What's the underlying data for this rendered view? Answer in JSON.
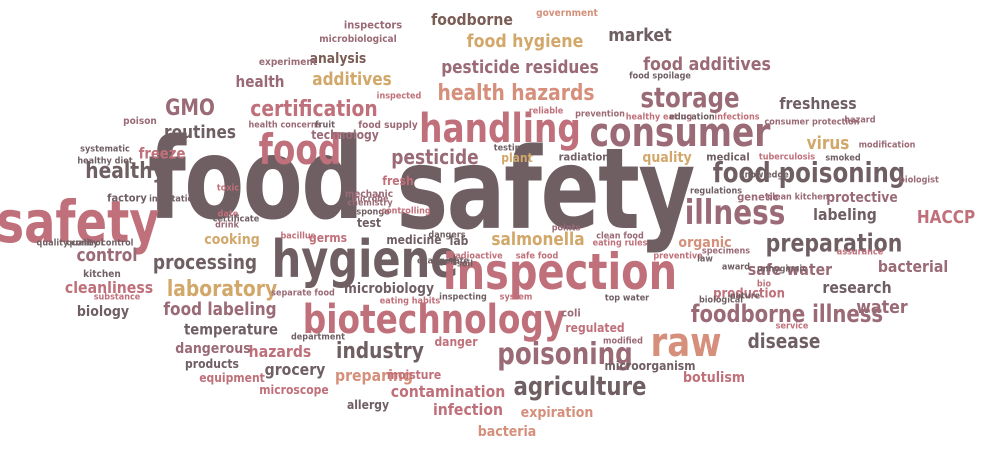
{
  "colors": {
    "dark": "#6f5f63",
    "mauve": "#9a6a76",
    "rose": "#c0707a",
    "salmon": "#d58f7a",
    "gold": "#d2a86a",
    "brown": "#7a5d55"
  },
  "words": [
    {
      "text": "food",
      "color": "#6f5f63"
    },
    {
      "text": "safety",
      "color": "#6f5f63"
    },
    {
      "text": "safety",
      "color": "#c0707a"
    },
    {
      "text": "hygiene",
      "color": "#6f5f63"
    },
    {
      "text": "inspection",
      "color": "#c0707a"
    },
    {
      "text": "biotechnology",
      "color": "#c0707a"
    },
    {
      "text": "consumer",
      "color": "#9a6a76"
    },
    {
      "text": "food",
      "color": "#c0707a"
    },
    {
      "text": "handling",
      "color": "#c0707a"
    },
    {
      "text": "raw",
      "color": "#d58f7a"
    },
    {
      "text": "illness",
      "color": "#9a6a76"
    },
    {
      "text": "poisoning",
      "color": "#9a6a76"
    },
    {
      "text": "food poisoning",
      "color": "#6f5f63"
    },
    {
      "text": "storage",
      "color": "#9a6a76"
    },
    {
      "text": "agriculture",
      "color": "#6f5f63"
    },
    {
      "text": "foodborne illness",
      "color": "#9a6a76"
    },
    {
      "text": "preparation",
      "color": "#6f5f63"
    },
    {
      "text": "laboratory",
      "color": "#d2a86a"
    },
    {
      "text": "health hazards",
      "color": "#d58f7a"
    },
    {
      "text": "certification",
      "color": "#c0707a"
    },
    {
      "text": "pesticide residues",
      "color": "#9a6a76"
    },
    {
      "text": "food hygiene",
      "color": "#d2a86a"
    },
    {
      "text": "foodborne",
      "color": "#7a5d55"
    },
    {
      "text": "market",
      "color": "#6f5f63"
    },
    {
      "text": "food additives",
      "color": "#9a6a76"
    },
    {
      "text": "freshness",
      "color": "#6f5f63"
    },
    {
      "text": "virus",
      "color": "#d2a86a"
    },
    {
      "text": "industry",
      "color": "#6f5f63"
    },
    {
      "text": "processing",
      "color": "#6f5f63"
    },
    {
      "text": "food labeling",
      "color": "#9a6a76"
    },
    {
      "text": "healthy",
      "color": "#6f5f63"
    },
    {
      "text": "GMO",
      "color": "#9a6a76"
    },
    {
      "text": "routines",
      "color": "#6f5f63"
    },
    {
      "text": "health",
      "color": "#9a6a76"
    },
    {
      "text": "additives",
      "color": "#d2a86a"
    },
    {
      "text": "analysis",
      "color": "#7a5d55"
    },
    {
      "text": "pesticide",
      "color": "#9a6a76"
    },
    {
      "text": "salmonella",
      "color": "#d2a86a"
    },
    {
      "text": "control",
      "color": "#9a6a76"
    },
    {
      "text": "cleanliness",
      "color": "#c0707a"
    },
    {
      "text": "labeling",
      "color": "#6f5f63"
    },
    {
      "text": "HACCP",
      "color": "#c0707a"
    },
    {
      "text": "protective",
      "color": "#9a6a76"
    },
    {
      "text": "safe water",
      "color": "#9a6a76"
    },
    {
      "text": "bacterial",
      "color": "#9a6a76"
    },
    {
      "text": "research",
      "color": "#6f5f63"
    },
    {
      "text": "water",
      "color": "#9a6a76"
    },
    {
      "text": "disease",
      "color": "#6f5f63"
    },
    {
      "text": "microbiology",
      "color": "#6f5f63"
    },
    {
      "text": "hazards",
      "color": "#c0707a"
    },
    {
      "text": "temperature",
      "color": "#6f5f63"
    },
    {
      "text": "cooking",
      "color": "#d2a86a"
    },
    {
      "text": "biology",
      "color": "#6f5f63"
    },
    {
      "text": "grocery",
      "color": "#6f5f63"
    },
    {
      "text": "preparing",
      "color": "#d58f7a"
    },
    {
      "text": "contamination",
      "color": "#c0707a"
    },
    {
      "text": "infection",
      "color": "#c0707a"
    },
    {
      "text": "expiration",
      "color": "#d58f7a"
    },
    {
      "text": "bacteria",
      "color": "#d58f7a"
    },
    {
      "text": "botulism",
      "color": "#c0707a"
    },
    {
      "text": "quality",
      "color": "#d2a86a"
    },
    {
      "text": "organic",
      "color": "#d58f7a"
    },
    {
      "text": "freeze",
      "color": "#c0707a"
    },
    {
      "text": "dangerous",
      "color": "#9a6a76"
    },
    {
      "text": "inspectors",
      "color": "#9a6a76"
    },
    {
      "text": "government",
      "color": "#d58f7a"
    },
    {
      "text": "microbiological",
      "color": "#9a6a76"
    },
    {
      "text": "experiment",
      "color": "#9a6a76"
    },
    {
      "text": "poison",
      "color": "#9a6a76"
    },
    {
      "text": "production",
      "color": "#c0707a"
    },
    {
      "text": "kitchen",
      "color": "#6f5f63"
    },
    {
      "text": "germs",
      "color": "#c0707a"
    },
    {
      "text": "medicine",
      "color": "#6f5f63"
    },
    {
      "text": "test",
      "color": "#6f5f63"
    },
    {
      "text": "lab",
      "color": "#6f5f63"
    },
    {
      "text": "fresh",
      "color": "#c0707a"
    },
    {
      "text": "radiation",
      "color": "#6f5f63"
    },
    {
      "text": "plant",
      "color": "#d2a86a"
    },
    {
      "text": "genetic",
      "color": "#9a6a76"
    },
    {
      "text": "medical",
      "color": "#6f5f63"
    },
    {
      "text": "products",
      "color": "#6f5f63"
    },
    {
      "text": "equipment",
      "color": "#c0707a"
    },
    {
      "text": "microscope",
      "color": "#c0707a"
    },
    {
      "text": "allergy",
      "color": "#6f5f63"
    },
    {
      "text": "moisture",
      "color": "#c0707a"
    },
    {
      "text": "microorganism",
      "color": "#6f5f63"
    },
    {
      "text": "danger",
      "color": "#c0707a"
    },
    {
      "text": "regulated",
      "color": "#c0707a"
    },
    {
      "text": "coli",
      "color": "#9a6a76"
    },
    {
      "text": "technology",
      "color": "#9a6a76"
    },
    {
      "text": "mechanic",
      "color": "#9a6a76"
    },
    {
      "text": "factory",
      "color": "#6f5f63"
    },
    {
      "text": "infestation",
      "color": "#6f5f63"
    },
    {
      "text": "food supply",
      "color": "#9a6a76"
    },
    {
      "text": "reliable",
      "color": "#c0707a"
    },
    {
      "text": "prevention",
      "color": "#9a6a76"
    },
    {
      "text": "infections",
      "color": "#c0707a"
    },
    {
      "text": "consumer protection",
      "color": "#9a6a76"
    },
    {
      "text": "healthy eating",
      "color": "#c0707a"
    },
    {
      "text": "education",
      "color": "#6f5f63"
    },
    {
      "text": "food spoilage",
      "color": "#6f5f63"
    },
    {
      "text": "hazard",
      "color": "#9a6a76"
    },
    {
      "text": "modification",
      "color": "#9a6a76"
    },
    {
      "text": "tuberculosis",
      "color": "#c0707a"
    },
    {
      "text": "smoked",
      "color": "#6f5f63"
    },
    {
      "text": "biologist",
      "color": "#9a6a76"
    },
    {
      "text": "knowledge",
      "color": "#6f5f63"
    },
    {
      "text": "clean kitchen",
      "color": "#9a6a76"
    },
    {
      "text": "assurance",
      "color": "#c0707a"
    },
    {
      "text": "systematic",
      "color": "#6f5f63"
    },
    {
      "text": "healthy diet",
      "color": "#6f5f63"
    },
    {
      "text": "health concerns",
      "color": "#9a6a76"
    },
    {
      "text": "fruit",
      "color": "#6f5f63"
    },
    {
      "text": "inspected",
      "color": "#c0707a"
    },
    {
      "text": "quality control",
      "color": "#6f5f63"
    },
    {
      "text": "toxic",
      "color": "#c0707a"
    },
    {
      "text": "date",
      "color": "#c0707a"
    },
    {
      "text": "certificate",
      "color": "#6f5f63"
    },
    {
      "text": "drink",
      "color": "#9a6a76"
    },
    {
      "text": "sponge",
      "color": "#6f5f63"
    },
    {
      "text": "controlling",
      "color": "#c0707a"
    },
    {
      "text": "microbe",
      "color": "#9a6a76"
    },
    {
      "text": "chemistry",
      "color": "#9a6a76"
    },
    {
      "text": "bacillus",
      "color": "#c0707a"
    },
    {
      "text": "dangers",
      "color": "#6f5f63"
    },
    {
      "text": "clean food",
      "color": "#9a6a76"
    },
    {
      "text": "eating rules",
      "color": "#c0707a"
    },
    {
      "text": "points",
      "color": "#9a6a76"
    },
    {
      "text": "testing",
      "color": "#6f5f63"
    },
    {
      "text": "exaggerate",
      "color": "#6f5f63"
    },
    {
      "text": "preventive",
      "color": "#c0707a"
    },
    {
      "text": "law",
      "color": "#6f5f63"
    },
    {
      "text": "regulations",
      "color": "#6f5f63"
    },
    {
      "text": "specimens",
      "color": "#9a6a76"
    },
    {
      "text": "award",
      "color": "#6f5f63"
    },
    {
      "text": "bio",
      "color": "#c0707a"
    },
    {
      "text": "unhygienic",
      "color": "#6f5f63"
    },
    {
      "text": "nature",
      "color": "#6f5f63"
    },
    {
      "text": "biological",
      "color": "#6f5f63"
    },
    {
      "text": "top water",
      "color": "#6f5f63"
    },
    {
      "text": "service",
      "color": "#c0707a"
    },
    {
      "text": "modified",
      "color": "#9a6a76"
    },
    {
      "text": "inspecting",
      "color": "#6f5f63"
    },
    {
      "text": "system",
      "color": "#c0707a"
    },
    {
      "text": "radioactive",
      "color": "#c0707a"
    },
    {
      "text": "safe food",
      "color": "#c0707a"
    },
    {
      "text": "soil",
      "color": "#6f5f63"
    },
    {
      "text": "separate food",
      "color": "#9a6a76"
    },
    {
      "text": "eating habits",
      "color": "#c0707a"
    },
    {
      "text": "department",
      "color": "#6f5f63"
    },
    {
      "text": "substance",
      "color": "#c0707a"
    },
    {
      "text": "quality control",
      "color": "#6f5f63"
    }
  ]
}
